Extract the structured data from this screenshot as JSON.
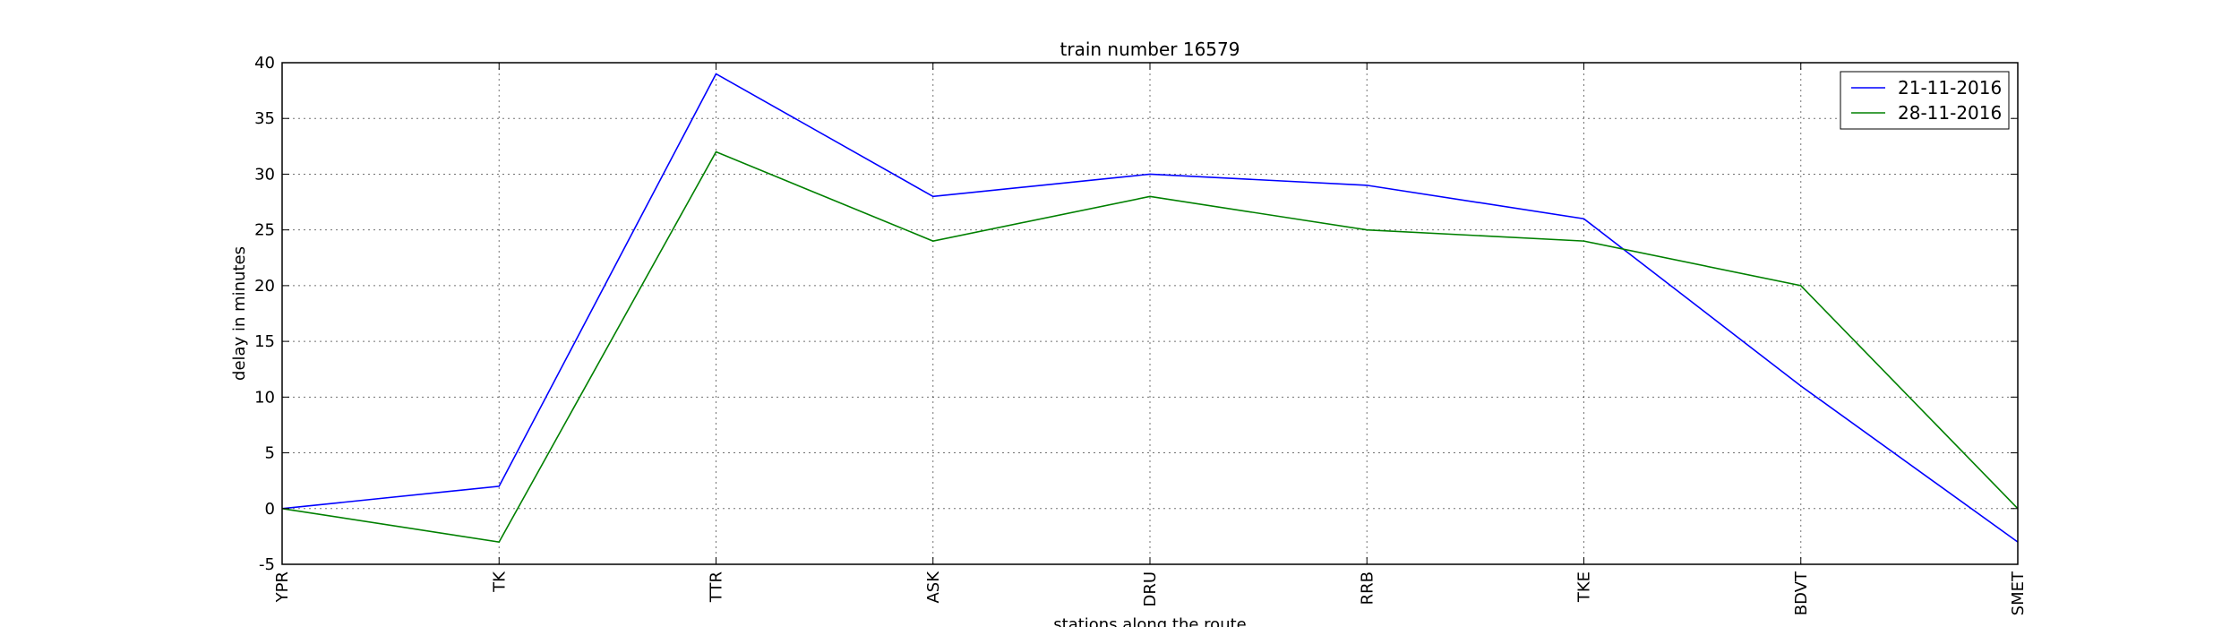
{
  "chart_data": {
    "type": "line",
    "title": "train number 16579",
    "xlabel": "stations along the route",
    "ylabel": "delay in minutes",
    "categories": [
      "YPR",
      "TK",
      "TTR",
      "ASK",
      "DRU",
      "RRB",
      "TKE",
      "BDVT",
      "SMET"
    ],
    "ylim": [
      -5,
      40
    ],
    "yticks": [
      -5,
      0,
      5,
      10,
      15,
      20,
      25,
      30,
      35,
      40
    ],
    "grid": true,
    "legend_position": "top-right",
    "series": [
      {
        "name": "21-11-2016",
        "color": "#0000ff",
        "values": [
          0,
          2,
          39,
          28,
          30,
          29,
          26,
          11,
          -3
        ]
      },
      {
        "name": "28-11-2016",
        "color": "#008000",
        "values": [
          0,
          -3,
          32,
          24,
          28,
          25,
          24,
          20,
          0
        ]
      }
    ]
  }
}
